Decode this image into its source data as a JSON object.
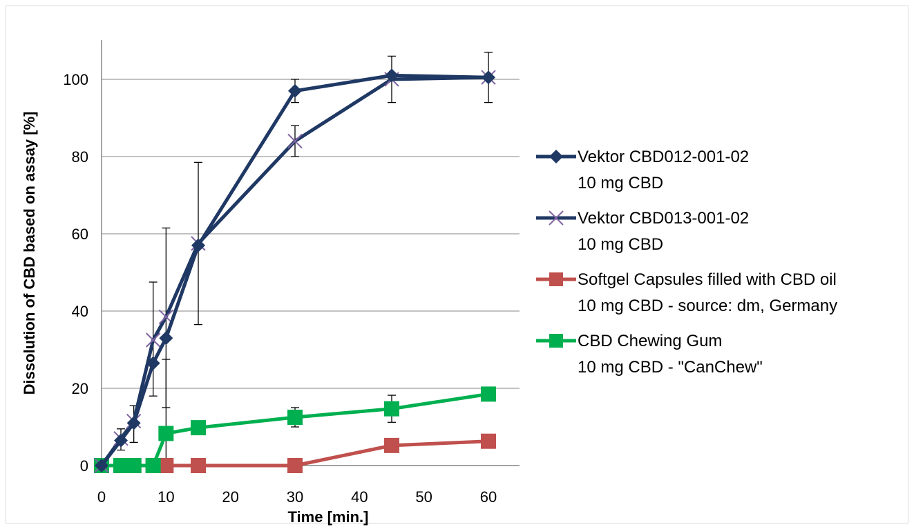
{
  "chart_data": {
    "type": "line",
    "title": "",
    "xlabel": "Time [min.]",
    "ylabel": "Dissolution of CBD based on assay [%]",
    "xlim": [
      -5,
      65
    ],
    "ylim": [
      0,
      110
    ],
    "xticks": [
      "0",
      "10",
      "20",
      "30",
      "40",
      "50",
      "60"
    ],
    "xtick_values": [
      0,
      10,
      20,
      30,
      40,
      50,
      60
    ],
    "yticks": [
      "0",
      "20",
      "40",
      "60",
      "80",
      "100"
    ],
    "ytick_values": [
      0,
      20,
      40,
      60,
      80,
      100
    ],
    "grid": "horizontal",
    "legend_position": "right",
    "series": [
      {
        "name": "Vektor CBD012-001-02",
        "sub": "10 mg CBD",
        "color": "#1f3864",
        "marker": "diamond",
        "points": [
          [
            0,
            0
          ],
          [
            3,
            6.5
          ],
          [
            5,
            11
          ],
          [
            8,
            26.5
          ],
          [
            10,
            33
          ],
          [
            15,
            57
          ],
          [
            30,
            97
          ],
          [
            45,
            101
          ],
          [
            60,
            100.5
          ]
        ],
        "error": [
          [
            30,
            94,
            100
          ],
          [
            45,
            94,
            106
          ]
        ]
      },
      {
        "name": "Vektor CBD013-001-02",
        "sub": "10 mg CBD",
        "color": "#1f3864",
        "marker": "x",
        "marker_color": "#8064a2",
        "points": [
          [
            0,
            0
          ],
          [
            3,
            7
          ],
          [
            5,
            11.5
          ],
          [
            8,
            32.5
          ],
          [
            10,
            38.5
          ],
          [
            15,
            57.5
          ],
          [
            30,
            84
          ],
          [
            45,
            100
          ],
          [
            60,
            100.5
          ]
        ],
        "error": [
          [
            3,
            4,
            9.5
          ],
          [
            5,
            6,
            15.5
          ],
          [
            8,
            18,
            47.5
          ],
          [
            10,
            15,
            61.5
          ],
          [
            15,
            36.5,
            78.5
          ],
          [
            30,
            80,
            88
          ],
          [
            60,
            94,
            107
          ]
        ]
      },
      {
        "name": "Softgel Capsules filled with CBD oil",
        "sub": "10 mg CBD - source: dm, Germany",
        "color": "#c0504d",
        "marker": "square",
        "points": [
          [
            0,
            0
          ],
          [
            3,
            0
          ],
          [
            5,
            0
          ],
          [
            8,
            0
          ],
          [
            10,
            0
          ],
          [
            15,
            0
          ],
          [
            30,
            0
          ],
          [
            45,
            5.2
          ],
          [
            60,
            6.3
          ]
        ],
        "error": []
      },
      {
        "name": "CBD Chewing Gum",
        "sub": "10 mg CBD - \"CanChew\"",
        "color": "#00b050",
        "marker": "square",
        "points": [
          [
            0,
            0
          ],
          [
            3,
            0
          ],
          [
            5,
            0
          ],
          [
            8,
            0
          ],
          [
            10,
            8.3
          ],
          [
            15,
            9.8
          ],
          [
            30,
            12.5
          ],
          [
            45,
            14.7
          ],
          [
            60,
            18.5
          ]
        ],
        "error": [
          [
            10,
            0,
            27.5
          ],
          [
            30,
            10,
            15
          ],
          [
            45,
            11.2,
            18.2
          ]
        ]
      }
    ]
  }
}
